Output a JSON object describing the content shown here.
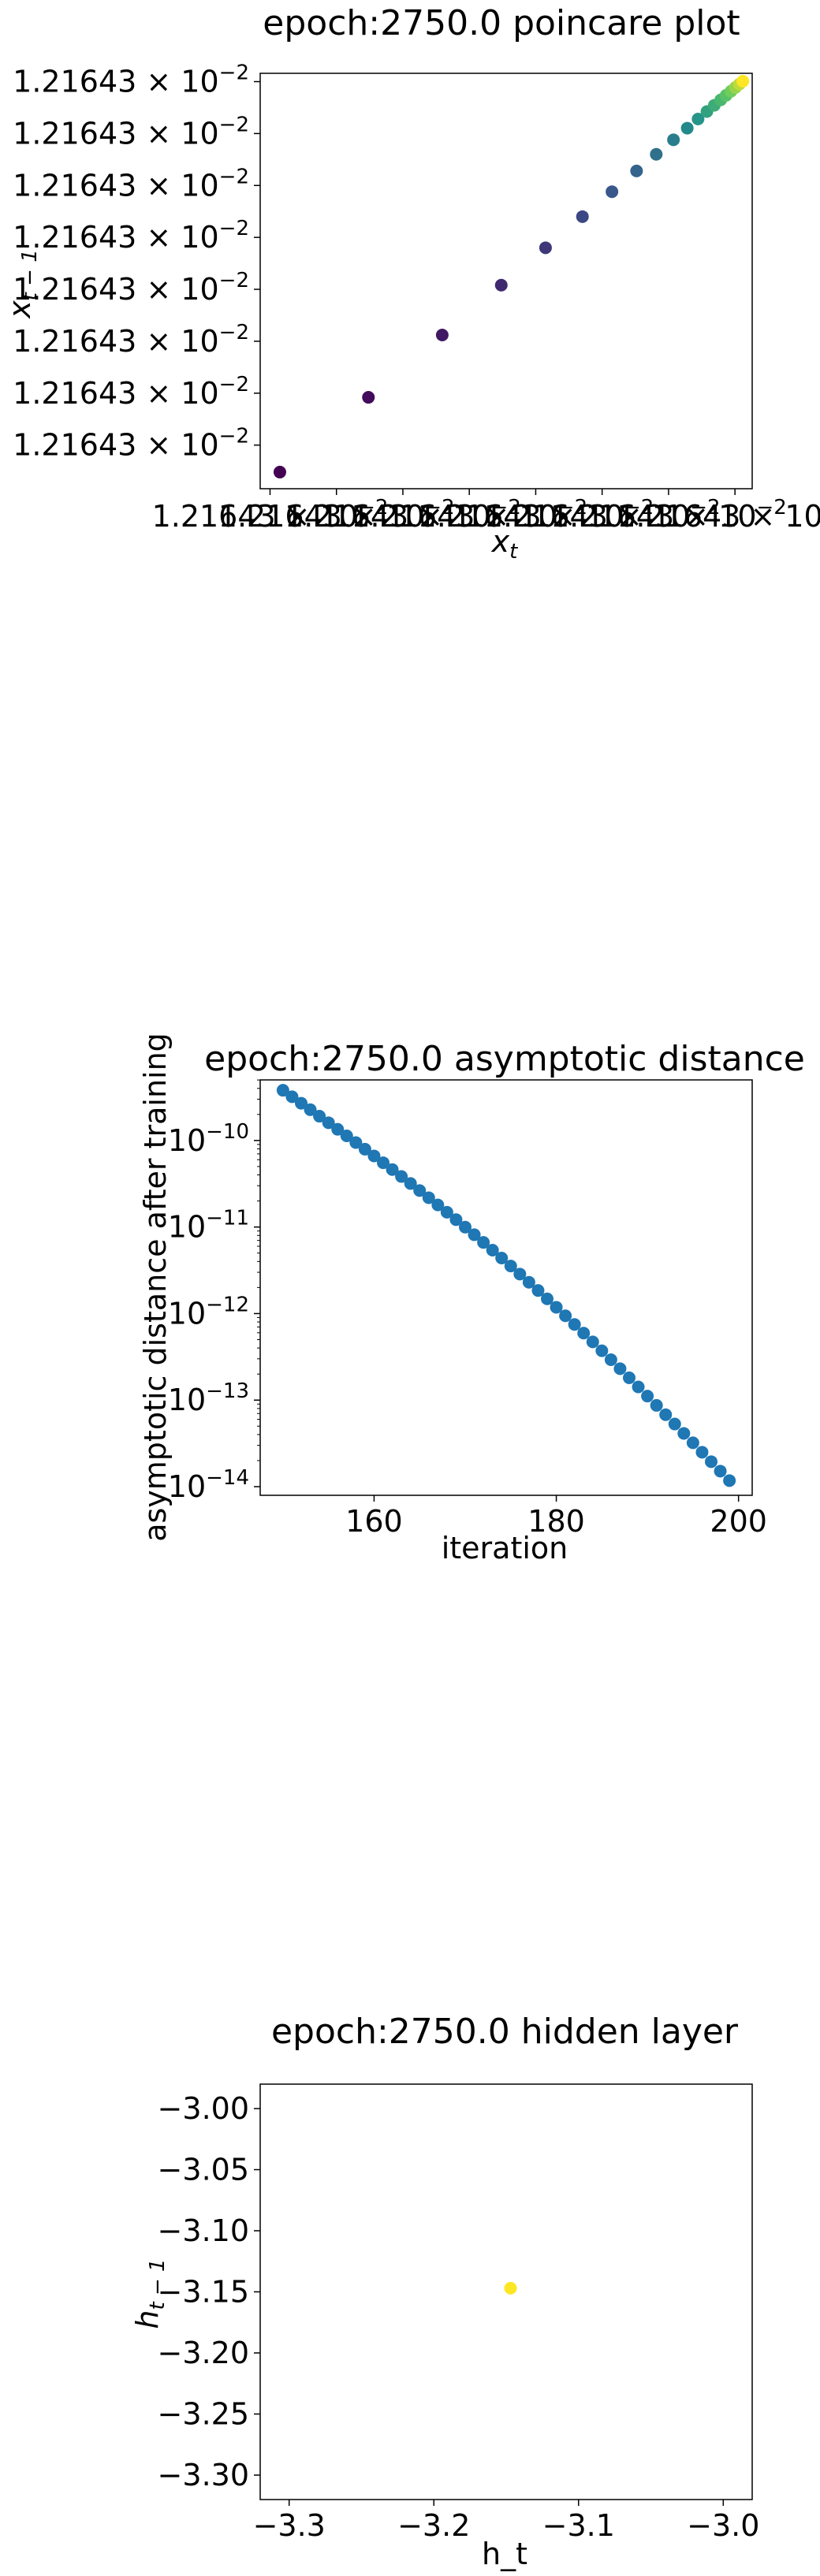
{
  "chart_data": [
    {
      "type": "scatter",
      "title": "epoch:2750.0 poincare plot",
      "xlabel_base": "x",
      "xlabel_sub": "t",
      "ylabel_base": "x",
      "ylabel_sub": "t − 1",
      "colormap": "viridis",
      "xlim": [
        0,
        1
      ],
      "ylim": [
        0,
        1
      ],
      "x_tick_text": "1.21643 × 10^−2",
      "y_ticks": [
        {
          "mantissa": "1.21643",
          "exp": "−2"
        },
        {
          "mantissa": "1.21643",
          "exp": "−2"
        },
        {
          "mantissa": "1.21643",
          "exp": "−2"
        },
        {
          "mantissa": "1.21643",
          "exp": "−2"
        },
        {
          "mantissa": "1.21643",
          "exp": "−2"
        },
        {
          "mantissa": "1.21643",
          "exp": "−2"
        },
        {
          "mantissa": "1.21643",
          "exp": "−2"
        },
        {
          "mantissa": "1.21643",
          "exp": "−2"
        }
      ],
      "x_tick_labels": [
        "1.21643 × 10^−2",
        "1.21643 × 10^−2",
        "1.21643 × 10^−2",
        "1.21643 × 10^−2",
        "1.21643 × 10^−2",
        "1.21643 × 10^−2",
        "1.21643 × 10^−2",
        "1.21643 × 10^−2"
      ],
      "x": [
        0.04,
        0.22,
        0.37,
        0.49,
        0.58,
        0.655,
        0.715,
        0.765,
        0.805,
        0.84,
        0.868,
        0.89,
        0.908,
        0.923,
        0.936,
        0.947,
        0.957,
        0.966,
        0.974,
        0.981
      ],
      "y": [
        0.04,
        0.22,
        0.37,
        0.49,
        0.58,
        0.655,
        0.715,
        0.765,
        0.805,
        0.84,
        0.868,
        0.89,
        0.908,
        0.923,
        0.936,
        0.947,
        0.957,
        0.966,
        0.974,
        0.981
      ],
      "color_value": [
        0.0,
        0.03,
        0.07,
        0.12,
        0.17,
        0.22,
        0.27,
        0.32,
        0.37,
        0.42,
        0.47,
        0.52,
        0.57,
        0.62,
        0.67,
        0.72,
        0.78,
        0.84,
        0.9,
        1.0
      ]
    },
    {
      "type": "scatter",
      "title": "epoch:2750.0 asymptotic distance",
      "xlabel": "iteration",
      "ylabel": "asymptotic distance after training",
      "yscale": "log",
      "xlim": [
        147.5,
        201.5
      ],
      "ylim_exp": [
        -14.1,
        -9.3
      ],
      "x_ticks": [
        "160",
        "180",
        "200"
      ],
      "x_tick_values": [
        160,
        180,
        200
      ],
      "y_ticks": [
        {
          "base": "10",
          "exp": "−10",
          "value": -10
        },
        {
          "base": "10",
          "exp": "−11",
          "value": -11
        },
        {
          "base": "10",
          "exp": "−12",
          "value": -12
        },
        {
          "base": "10",
          "exp": "−13",
          "value": -13
        },
        {
          "base": "10",
          "exp": "−14",
          "value": -14
        }
      ],
      "x": [
        150,
        151,
        152,
        153,
        154,
        155,
        156,
        157,
        158,
        159,
        160,
        161,
        162,
        163,
        164,
        165,
        166,
        167,
        168,
        169,
        170,
        171,
        172,
        173,
        174,
        175,
        176,
        177,
        178,
        179,
        180,
        181,
        182,
        183,
        184,
        185,
        186,
        187,
        188,
        189,
        190,
        191,
        192,
        193,
        194,
        195,
        196,
        197,
        198,
        199
      ],
      "log10_y_start": -9.42,
      "log10_y_end": -13.93,
      "color": "#1f77b4"
    },
    {
      "type": "scatter",
      "title": "epoch:2750.0 hidden layer",
      "xlabel": "h_t",
      "ylabel_base": "h",
      "ylabel_sub": "t − 1",
      "xlim": [
        -3.32,
        -2.98
      ],
      "ylim": [
        -3.32,
        -2.98
      ],
      "x_ticks": [
        "−3.3",
        "−3.2",
        "−3.1",
        "−3.0"
      ],
      "x_tick_values": [
        -3.3,
        -3.2,
        -3.1,
        -3.0
      ],
      "y_ticks": [
        "−3.00",
        "−3.05",
        "−3.10",
        "−3.15",
        "−3.20",
        "−3.25",
        "−3.30"
      ],
      "y_tick_values": [
        -3.0,
        -3.05,
        -3.1,
        -3.15,
        -3.2,
        -3.25,
        -3.3
      ],
      "x": [
        -3.147
      ],
      "y": [
        -3.147
      ],
      "color": "#fde725"
    }
  ]
}
